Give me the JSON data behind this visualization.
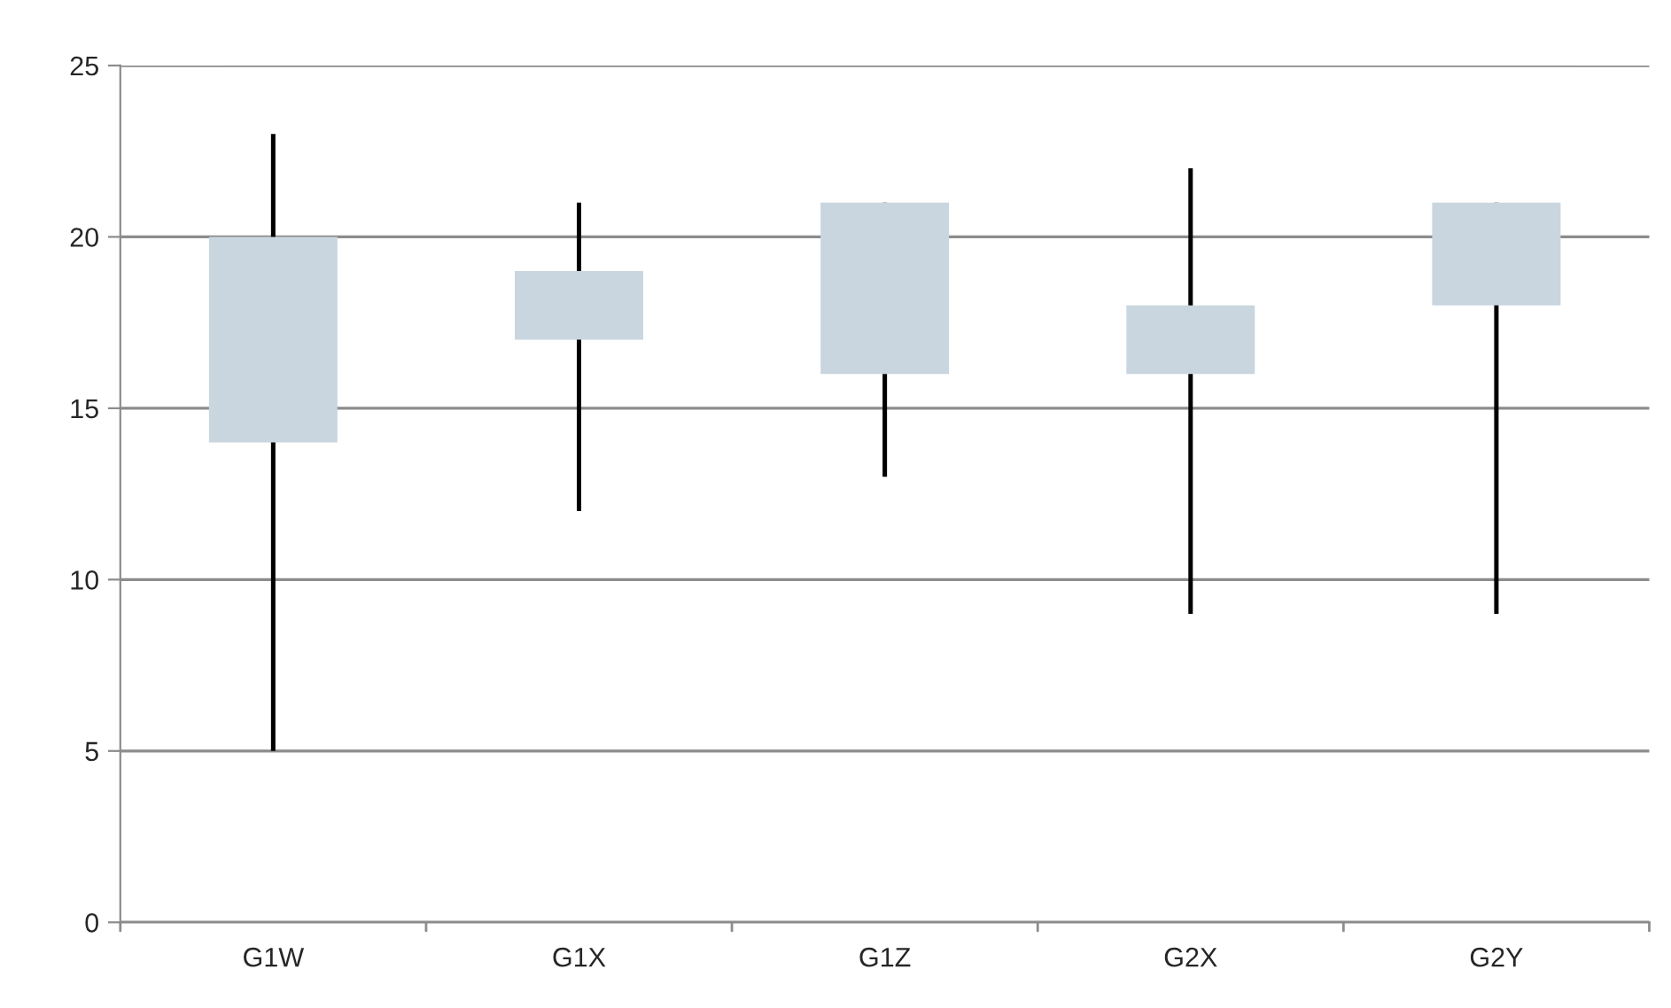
{
  "chart_data": {
    "type": "candlestick",
    "categories": [
      "G1W",
      "G1X",
      "G1Z",
      "G2X",
      "G2Y"
    ],
    "ohlc": [
      [
        14,
        23,
        5,
        20
      ],
      [
        17,
        21,
        12,
        19
      ],
      [
        16,
        21,
        13,
        21
      ],
      [
        16,
        22,
        9,
        18
      ],
      [
        18,
        21,
        9,
        21
      ]
    ],
    "color": "#c9d6df",
    "ylim": [
      0,
      25
    ],
    "yticks": [
      0,
      5,
      10,
      15,
      20,
      25
    ],
    "grid": "y"
  }
}
